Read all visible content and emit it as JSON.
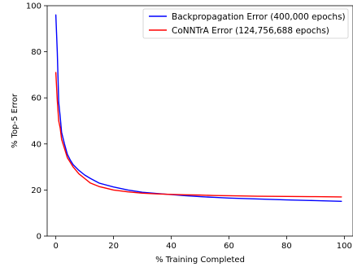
{
  "chart_data": {
    "type": "line",
    "title": "",
    "xlabel": "% Training Completed",
    "ylabel": "% Top-5 Error",
    "xlim": [
      -3,
      103
    ],
    "ylim": [
      0,
      100
    ],
    "xticks": [
      0,
      20,
      40,
      60,
      80,
      100
    ],
    "yticks": [
      0,
      20,
      40,
      60,
      80,
      100
    ],
    "grid": false,
    "legend_position": "top-right",
    "series": [
      {
        "name": "Backpropagation Error (400,000 epochs)",
        "color": "#0000ff",
        "x": [
          0,
          0.5,
          1,
          1.5,
          2,
          3,
          4,
          5,
          6,
          8,
          10,
          12,
          15,
          20,
          25,
          30,
          35,
          40,
          45,
          50,
          55,
          60,
          70,
          80,
          90,
          99
        ],
        "y": [
          96,
          80,
          58,
          52,
          45,
          40,
          35.5,
          33,
          31,
          28.5,
          26.5,
          25,
          23,
          21.3,
          20,
          19,
          18.5,
          18,
          17.5,
          17.1,
          16.8,
          16.5,
          16.1,
          15.7,
          15.4,
          15.1
        ]
      },
      {
        "name": "CoNNTrA Error (124,756,688 epochs)",
        "color": "#ff0000",
        "x": [
          0,
          0.5,
          1,
          1.5,
          2,
          3,
          4,
          5,
          6,
          8,
          10,
          12,
          15,
          20,
          25,
          30,
          35,
          40,
          45,
          50,
          55,
          60,
          70,
          80,
          90,
          99
        ],
        "y": [
          71,
          59,
          50,
          47,
          42,
          38,
          34,
          32,
          30,
          27,
          25,
          23,
          21.5,
          20,
          19.2,
          18.6,
          18.3,
          18.1,
          17.9,
          17.8,
          17.6,
          17.5,
          17.3,
          17.2,
          17.1,
          17.0
        ]
      }
    ]
  }
}
